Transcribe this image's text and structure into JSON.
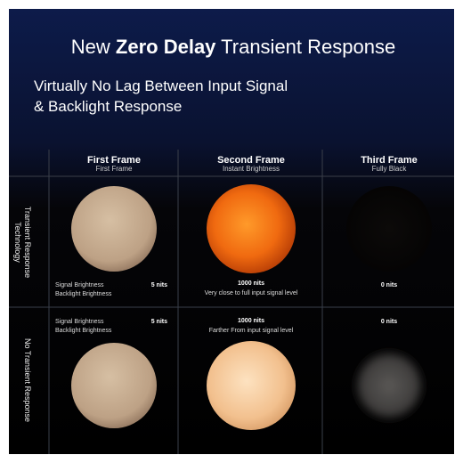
{
  "header": {
    "title": {
      "prefix": "New",
      "emphasis": "Zero Delay",
      "suffix": "Transient Response"
    },
    "subtitle": [
      "Virtually No Lag Between Input Signal",
      "& Backlight Response"
    ]
  },
  "columns": [
    {
      "title": "First Frame",
      "subtitle": "First Frame"
    },
    {
      "title": "Second Frame",
      "subtitle": "Instant Brightness"
    },
    {
      "title": "Third Frame",
      "subtitle": "Fully Black"
    }
  ],
  "rows": [
    {
      "label": [
        "Transient Response",
        "Technology"
      ],
      "cells": [
        {
          "labels": [
            "Signal Brightness",
            "Backlight Brightness"
          ],
          "value": "5 nits"
        },
        {
          "value": "1000 nits",
          "note": "Very close to full input signal level"
        },
        {
          "value": "0 nits"
        }
      ]
    },
    {
      "label": [
        "No Transient Response"
      ],
      "cells": [
        {
          "labels": [
            "Signal Brightness",
            "Backlight Brightness"
          ],
          "value": "5 nits"
        },
        {
          "value": "1000 nits",
          "note": "Farther From input signal level"
        },
        {
          "value": "0 nits"
        }
      ]
    }
  ]
}
